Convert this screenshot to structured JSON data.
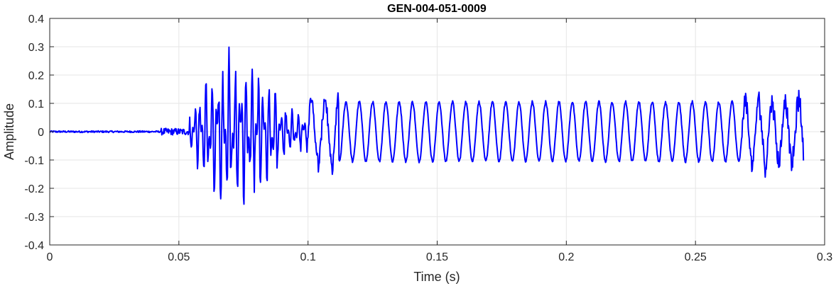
{
  "chart_data": {
    "type": "line",
    "title": "GEN-004-051-0009",
    "xlabel": "Time (s)",
    "ylabel": "Amplitude",
    "xlim": [
      0,
      0.3
    ],
    "ylim": [
      -0.4,
      0.4
    ],
    "x_ticks": [
      0,
      0.05,
      0.1,
      0.15,
      0.2,
      0.25,
      0.3
    ],
    "x_tick_labels": [
      "0",
      "0.05",
      "0.1",
      "0.15",
      "0.2",
      "0.25",
      "0.3"
    ],
    "y_ticks": [
      -0.4,
      -0.3,
      -0.2,
      -0.1,
      0,
      0.1,
      0.2,
      0.3,
      0.4
    ],
    "y_tick_labels": [
      "-0.4",
      "-0.3",
      "-0.2",
      "-0.1",
      "0",
      "0.1",
      "0.2",
      "0.3",
      "0.4"
    ],
    "grid": true,
    "legend": false,
    "series": [
      {
        "color": "#0000ff",
        "duration_s": 0.292,
        "sample_step_s": 0.0002,
        "segments": [
          {
            "t_start": 0.0,
            "t_end": 0.043,
            "kind": "noise",
            "amplitude": 0.003
          },
          {
            "t_start": 0.043,
            "t_end": 0.054,
            "kind": "noise",
            "amplitude": 0.012
          },
          {
            "t_start": 0.054,
            "t_end": 0.1,
            "kind": "burst",
            "amplitude": 0.3,
            "freq_hz": 450
          },
          {
            "t_start": 0.1,
            "t_end": 0.112,
            "kind": "transition",
            "amplitude": 0.12,
            "freq_hz": 190
          },
          {
            "t_start": 0.112,
            "t_end": 0.268,
            "kind": "periodic",
            "amplitude": 0.105,
            "freq_hz": 194
          },
          {
            "t_start": 0.268,
            "t_end": 0.292,
            "kind": "noisy-periodic",
            "amplitude": 0.11,
            "freq_hz": 194
          }
        ]
      }
    ]
  }
}
